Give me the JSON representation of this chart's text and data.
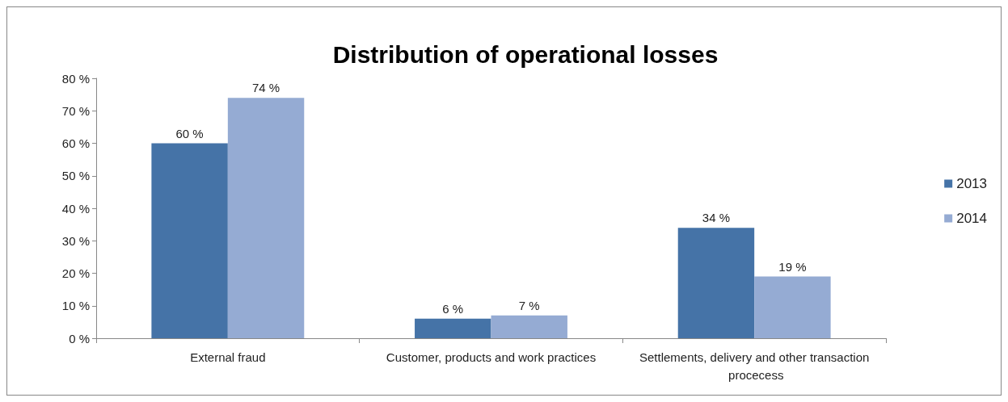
{
  "chart_data": {
    "type": "bar",
    "title": "Distribution of operational losses",
    "categories": [
      "External fraud",
      "Customer, products and work practices",
      "Settlements, delivery and other transaction procecess"
    ],
    "series": [
      {
        "name": "2013",
        "color": "#4573a7",
        "values": [
          60,
          6,
          34
        ],
        "value_labels": [
          "60 %",
          "6 %",
          "34 %"
        ]
      },
      {
        "name": "2014",
        "color": "#95abd3",
        "values": [
          74,
          7,
          19
        ],
        "value_labels": [
          "74 %",
          "7 %",
          "19 %"
        ]
      }
    ],
    "ylim": [
      0,
      80
    ],
    "yticks": [
      {
        "value": 0,
        "label": "0 %"
      },
      {
        "value": 10,
        "label": "10 %"
      },
      {
        "value": 20,
        "label": "20 %"
      },
      {
        "value": 30,
        "label": "30 %"
      },
      {
        "value": 40,
        "label": "40 %"
      },
      {
        "value": 50,
        "label": "50 %"
      },
      {
        "value": 60,
        "label": "60 %"
      },
      {
        "value": 70,
        "label": "70 %"
      },
      {
        "value": 80,
        "label": "80 %"
      }
    ],
    "grid": false,
    "legend": "right"
  }
}
